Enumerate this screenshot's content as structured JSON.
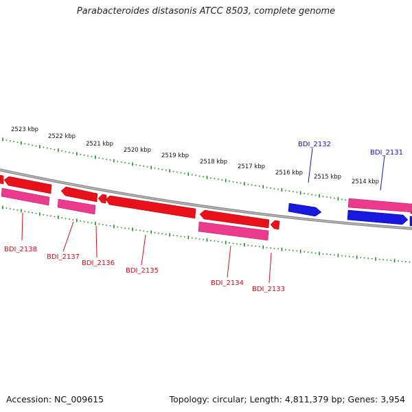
{
  "title": "Parabacteroides distasonis ATCC 8503, complete genome",
  "footer": {
    "accession": "Accession: NC_009615",
    "topology": "Topology: circular; Length: 4,811,379 bp; Genes: 3,954"
  },
  "colors": {
    "backbone": "#8a8a8a",
    "tick": "#1f8a1f",
    "gene_red": "#e8101a",
    "gene_pink": "#ec3a8c",
    "gene_blue": "#1818e0",
    "label_red": "#c8101a",
    "label_blue": "#1010c0"
  },
  "kbp_labels": [
    "2523 kbp",
    "2522 kbp",
    "2521 kbp",
    "2520 kbp",
    "2519 kbp",
    "2518 kbp",
    "2517 kbp",
    "2516 kbp",
    "2515 kbp",
    "2514 kbp"
  ],
  "gene_labels": [
    "BDI_2138",
    "BDI_2137",
    "BDI_2136",
    "BDI_2135",
    "BDI_2134",
    "BDI_2133",
    "BDI_2132",
    "BDI_2131"
  ]
}
